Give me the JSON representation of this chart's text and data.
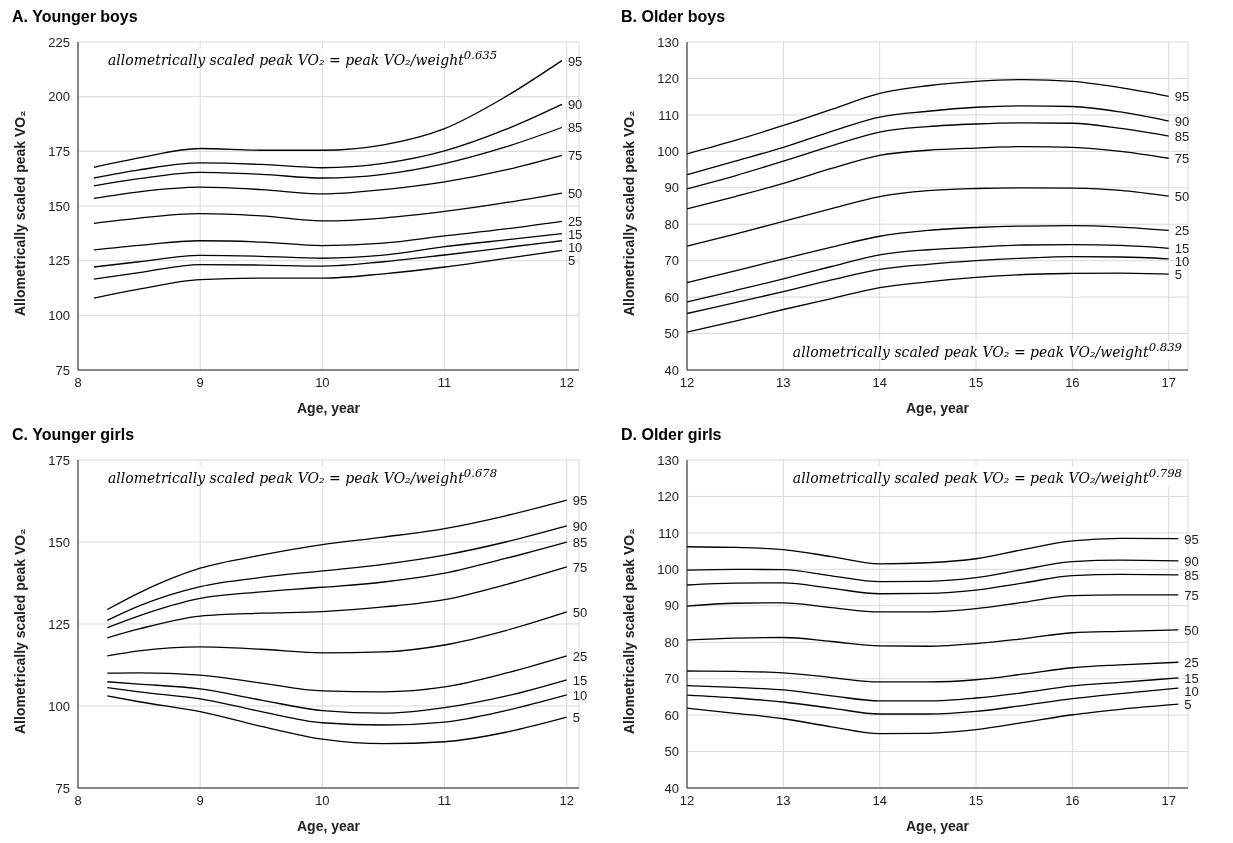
{
  "chart_data": [
    {
      "type": "line",
      "title": "A. Younger boys",
      "xlabel": "Age, year",
      "ylabel": "Allometrically scaled peak VO₂",
      "annotations": [
        "allometrically scaled peak VO₂ = peak VO₂/weight$^{0.635}$"
      ],
      "xlim": [
        8,
        12.1
      ],
      "xticks": [
        8,
        9,
        10,
        11,
        12
      ],
      "ylim": [
        75,
        225
      ],
      "yticks": [
        75,
        100,
        125,
        150,
        175,
        200,
        225
      ],
      "grid": true,
      "marker": "none",
      "line_style": "solid",
      "x": [
        8.13,
        8.5,
        9,
        9.5,
        10,
        10.5,
        11,
        11.5,
        11.96
      ],
      "series": [
        {
          "name": "95",
          "color": "#000000",
          "values": [
            167.7,
            172,
            176.3,
            175.5,
            175.5,
            178,
            185.4,
            200,
            216.5
          ]
        },
        {
          "name": "90",
          "color": "#000000",
          "values": [
            162.8,
            166.5,
            169.7,
            169,
            167.5,
            169.5,
            175.2,
            185,
            196.5
          ]
        },
        {
          "name": "85",
          "color": "#000000",
          "values": [
            159.2,
            162.5,
            165.4,
            164.5,
            162.8,
            164.5,
            169.4,
            177,
            185.9
          ]
        },
        {
          "name": "75",
          "color": "#000000",
          "values": [
            153.5,
            156.5,
            158.6,
            157.5,
            155.5,
            157.5,
            161,
            166.5,
            173.2
          ]
        },
        {
          "name": "50",
          "color": "#000000",
          "values": [
            142.1,
            144.5,
            146.5,
            145.5,
            143.2,
            144.5,
            147.5,
            151.5,
            155.9
          ]
        },
        {
          "name": "25",
          "color": "#000000",
          "values": [
            129.9,
            132,
            134.1,
            133.5,
            131.9,
            133,
            136.3,
            139.5,
            143
          ]
        },
        {
          "name": "15",
          "color": "#000000",
          "values": [
            122.1,
            124.5,
            127.4,
            127,
            126.1,
            127.5,
            131.4,
            134.5,
            137.4
          ]
        },
        {
          "name": "10",
          "color": "#000000",
          "values": [
            116.6,
            119.5,
            123.2,
            123,
            122.5,
            124.5,
            127.6,
            131,
            134.1
          ]
        },
        {
          "name": "5",
          "color": "#000000",
          "values": [
            107.9,
            112,
            116.3,
            117,
            117,
            119,
            122.1,
            126,
            129.7
          ]
        }
      ]
    },
    {
      "type": "line",
      "title": "B. Older boys",
      "xlabel": "Age, year",
      "ylabel": "Allometrically scaled peak VO₂",
      "annotations": [
        "allometrically scaled peak VO₂ = peak VO₂/weight$^{0.839}$"
      ],
      "xlim": [
        12,
        17.2
      ],
      "xticks": [
        12,
        13,
        14,
        15,
        16,
        17
      ],
      "ylim": [
        40,
        130
      ],
      "yticks": [
        40,
        50,
        60,
        70,
        80,
        90,
        100,
        110,
        120,
        130
      ],
      "grid": true,
      "marker": "none",
      "line_style": "solid",
      "x": [
        12,
        12.5,
        13,
        13.5,
        14,
        14.5,
        15,
        15.5,
        16,
        16.5,
        17
      ],
      "series": [
        {
          "name": "95",
          "color": "#000000",
          "values": [
            99.3,
            103,
            107.1,
            111.5,
            115.9,
            118,
            119.2,
            119.7,
            119.2,
            117.5,
            115.1
          ]
        },
        {
          "name": "90",
          "color": "#000000",
          "values": [
            93.6,
            97.3,
            101.1,
            105.5,
            109.4,
            111,
            112.1,
            112.5,
            112.3,
            110.8,
            108.3
          ]
        },
        {
          "name": "85",
          "color": "#000000",
          "values": [
            89.7,
            93.3,
            97.3,
            101.5,
            105.3,
            106.8,
            107.5,
            107.8,
            107.7,
            106.3,
            104.2
          ]
        },
        {
          "name": "75",
          "color": "#000000",
          "values": [
            84.2,
            87.6,
            91.2,
            95.3,
            98.9,
            100.3,
            100.9,
            101.3,
            101.1,
            100,
            98.1
          ]
        },
        {
          "name": "50",
          "color": "#000000",
          "values": [
            74,
            77.3,
            80.8,
            84.3,
            87.6,
            89.2,
            89.8,
            90,
            89.9,
            89.3,
            87.7
          ]
        },
        {
          "name": "25",
          "color": "#000000",
          "values": [
            64,
            67.2,
            70.5,
            73.7,
            76.7,
            78.3,
            79.1,
            79.5,
            79.6,
            79.2,
            78.3
          ]
        },
        {
          "name": "15",
          "color": "#000000",
          "values": [
            58.7,
            61.8,
            65,
            68.4,
            71.6,
            73,
            73.7,
            74.3,
            74.4,
            74.2,
            73.4
          ]
        },
        {
          "name": "10",
          "color": "#000000",
          "values": [
            55.5,
            58.5,
            61.5,
            64.7,
            67.6,
            69,
            70,
            70.7,
            71.1,
            71,
            70.5
          ]
        },
        {
          "name": "5",
          "color": "#000000",
          "values": [
            50.4,
            53.4,
            56.6,
            59.6,
            62.6,
            64.2,
            65.4,
            66.2,
            66.5,
            66.6,
            66.3
          ]
        }
      ]
    },
    {
      "type": "line",
      "title": "C. Younger girls",
      "xlabel": "Age, year",
      "ylabel": "Allometrically scaled peak VO₂",
      "annotations": [
        "allometrically scaled peak VO₂ = peak VO₂/weight$^{0.678}$"
      ],
      "xlim": [
        8,
        12.1
      ],
      "xticks": [
        8,
        9,
        10,
        11,
        12
      ],
      "ylim": [
        75,
        175
      ],
      "yticks": [
        75,
        100,
        125,
        150,
        175
      ],
      "grid": true,
      "marker": "none",
      "line_style": "solid",
      "x": [
        8.24,
        8.5,
        9,
        9.5,
        10,
        10.5,
        11,
        11.5,
        12
      ],
      "series": [
        {
          "name": "95",
          "color": "#000000",
          "values": [
            129.4,
            134.5,
            142,
            146,
            149.2,
            151.5,
            154.1,
            158,
            162.8
          ]
        },
        {
          "name": "90",
          "color": "#000000",
          "values": [
            126.1,
            130.5,
            136.4,
            139.2,
            141.2,
            143.2,
            146,
            150,
            154.9
          ]
        },
        {
          "name": "85",
          "color": "#000000",
          "values": [
            123.9,
            127.5,
            132.8,
            134.8,
            136.2,
            137.8,
            140.5,
            145,
            150
          ]
        },
        {
          "name": "75",
          "color": "#000000",
          "values": [
            120.8,
            123.5,
            127.4,
            128.3,
            128.8,
            130.2,
            132.4,
            137,
            142.4
          ]
        },
        {
          "name": "50",
          "color": "#000000",
          "values": [
            115.3,
            116.8,
            118,
            117.3,
            116.2,
            116.5,
            118.6,
            123,
            128.7
          ]
        },
        {
          "name": "25",
          "color": "#000000",
          "values": [
            110,
            110.1,
            109.4,
            107,
            104.6,
            104.3,
            105.8,
            110,
            115.3
          ]
        },
        {
          "name": "15",
          "color": "#000000",
          "values": [
            107.4,
            106.7,
            105.2,
            101.8,
            98.6,
            97.8,
            99.5,
            103,
            108
          ]
        },
        {
          "name": "10",
          "color": "#000000",
          "values": [
            105.6,
            104.3,
            102.2,
            98.3,
            94.9,
            94.2,
            95.1,
            98.6,
            103.4
          ]
        },
        {
          "name": "5",
          "color": "#000000",
          "values": [
            103.1,
            101.3,
            98.3,
            93.8,
            89.9,
            88.5,
            89.1,
            92,
            96.6
          ]
        }
      ]
    },
    {
      "type": "line",
      "title": "D. Older girls",
      "xlabel": "Age, year",
      "ylabel": "Allometrically scaled peak VO₂",
      "annotations": [
        "allometrically scaled peak VO₂ = peak VO₂/weight$^{0.798}$"
      ],
      "xlim": [
        12,
        17.2
      ],
      "xticks": [
        12,
        13,
        14,
        15,
        16,
        17
      ],
      "ylim": [
        40,
        130
      ],
      "yticks": [
        40,
        50,
        60,
        70,
        80,
        90,
        100,
        110,
        120,
        130
      ],
      "grid": true,
      "marker": "none",
      "line_style": "solid",
      "x": [
        12,
        12.5,
        13,
        13.5,
        14,
        14.5,
        15,
        15.5,
        16,
        16.5,
        17.1
      ],
      "series": [
        {
          "name": "95",
          "color": "#000000",
          "values": [
            106.2,
            106,
            105.4,
            103.5,
            101.5,
            101.8,
            102.9,
            105.5,
            107.8,
            108.5,
            108.4
          ]
        },
        {
          "name": "90",
          "color": "#000000",
          "values": [
            99.8,
            100,
            99.9,
            98.2,
            96.6,
            96.7,
            97.7,
            100,
            102.1,
            102.5,
            102.3
          ]
        },
        {
          "name": "85",
          "color": "#000000",
          "values": [
            95.7,
            96.2,
            96.3,
            94.8,
            93.3,
            93.4,
            94.3,
            96.3,
            98.3,
            98.6,
            98.5
          ]
        },
        {
          "name": "75",
          "color": "#000000",
          "values": [
            89.9,
            90.7,
            90.8,
            89.5,
            88.3,
            88.3,
            89.2,
            91,
            92.8,
            93,
            93
          ]
        },
        {
          "name": "50",
          "color": "#000000",
          "values": [
            80.6,
            81.1,
            81.3,
            80.2,
            79,
            78.9,
            79.6,
            81,
            82.6,
            83,
            83.4
          ]
        },
        {
          "name": "25",
          "color": "#000000",
          "values": [
            72.1,
            72,
            71.6,
            70.3,
            69.1,
            69.1,
            69.7,
            71.3,
            73,
            73.8,
            74.5
          ]
        },
        {
          "name": "15",
          "color": "#000000",
          "values": [
            68.1,
            67.6,
            66.9,
            65.3,
            63.9,
            63.9,
            64.7,
            66.2,
            68,
            69,
            70.2
          ]
        },
        {
          "name": "10",
          "color": "#000000",
          "values": [
            65.5,
            64.7,
            63.6,
            61.9,
            60.3,
            60.3,
            61,
            62.7,
            64.5,
            65.9,
            67.4
          ]
        },
        {
          "name": "5",
          "color": "#000000",
          "values": [
            61.9,
            60.5,
            59,
            56.8,
            54.9,
            55,
            56,
            58,
            60.1,
            61.6,
            63
          ]
        }
      ]
    }
  ]
}
